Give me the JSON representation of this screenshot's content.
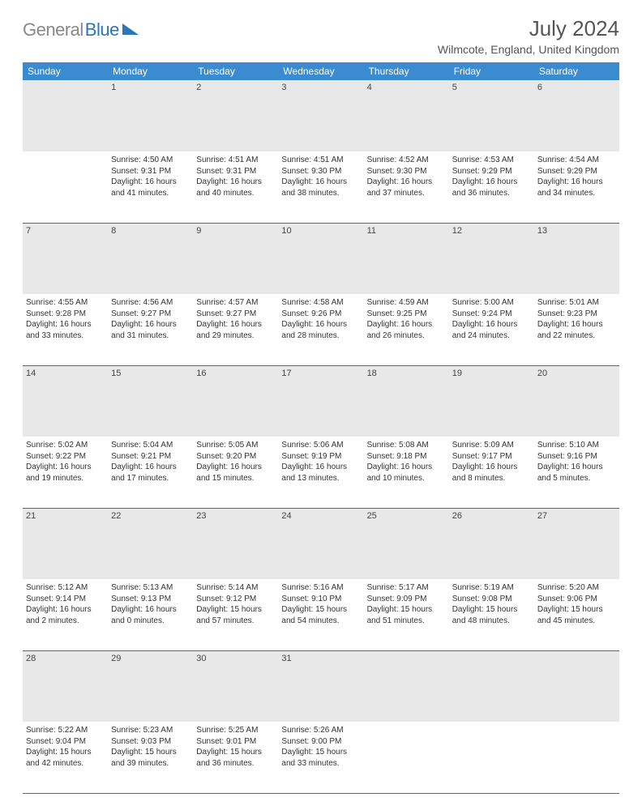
{
  "logo": {
    "gray": "General",
    "blue": "Blue"
  },
  "title": "July 2024",
  "location": "Wilmcote, England, United Kingdom",
  "colors": {
    "header_bg": "#3a8bd0",
    "rule": "#2e75b6",
    "daynum_bg": "#e8e8e8",
    "logo_gray": "#888888",
    "logo_blue": "#2e75b6"
  },
  "weekdays": [
    "Sunday",
    "Monday",
    "Tuesday",
    "Wednesday",
    "Thursday",
    "Friday",
    "Saturday"
  ],
  "weeks": [
    [
      {
        "num": "",
        "lines": []
      },
      {
        "num": "1",
        "lines": [
          "Sunrise: 4:50 AM",
          "Sunset: 9:31 PM",
          "Daylight: 16 hours",
          "and 41 minutes."
        ]
      },
      {
        "num": "2",
        "lines": [
          "Sunrise: 4:51 AM",
          "Sunset: 9:31 PM",
          "Daylight: 16 hours",
          "and 40 minutes."
        ]
      },
      {
        "num": "3",
        "lines": [
          "Sunrise: 4:51 AM",
          "Sunset: 9:30 PM",
          "Daylight: 16 hours",
          "and 38 minutes."
        ]
      },
      {
        "num": "4",
        "lines": [
          "Sunrise: 4:52 AM",
          "Sunset: 9:30 PM",
          "Daylight: 16 hours",
          "and 37 minutes."
        ]
      },
      {
        "num": "5",
        "lines": [
          "Sunrise: 4:53 AM",
          "Sunset: 9:29 PM",
          "Daylight: 16 hours",
          "and 36 minutes."
        ]
      },
      {
        "num": "6",
        "lines": [
          "Sunrise: 4:54 AM",
          "Sunset: 9:29 PM",
          "Daylight: 16 hours",
          "and 34 minutes."
        ]
      }
    ],
    [
      {
        "num": "7",
        "lines": [
          "Sunrise: 4:55 AM",
          "Sunset: 9:28 PM",
          "Daylight: 16 hours",
          "and 33 minutes."
        ]
      },
      {
        "num": "8",
        "lines": [
          "Sunrise: 4:56 AM",
          "Sunset: 9:27 PM",
          "Daylight: 16 hours",
          "and 31 minutes."
        ]
      },
      {
        "num": "9",
        "lines": [
          "Sunrise: 4:57 AM",
          "Sunset: 9:27 PM",
          "Daylight: 16 hours",
          "and 29 minutes."
        ]
      },
      {
        "num": "10",
        "lines": [
          "Sunrise: 4:58 AM",
          "Sunset: 9:26 PM",
          "Daylight: 16 hours",
          "and 28 minutes."
        ]
      },
      {
        "num": "11",
        "lines": [
          "Sunrise: 4:59 AM",
          "Sunset: 9:25 PM",
          "Daylight: 16 hours",
          "and 26 minutes."
        ]
      },
      {
        "num": "12",
        "lines": [
          "Sunrise: 5:00 AM",
          "Sunset: 9:24 PM",
          "Daylight: 16 hours",
          "and 24 minutes."
        ]
      },
      {
        "num": "13",
        "lines": [
          "Sunrise: 5:01 AM",
          "Sunset: 9:23 PM",
          "Daylight: 16 hours",
          "and 22 minutes."
        ]
      }
    ],
    [
      {
        "num": "14",
        "lines": [
          "Sunrise: 5:02 AM",
          "Sunset: 9:22 PM",
          "Daylight: 16 hours",
          "and 19 minutes."
        ]
      },
      {
        "num": "15",
        "lines": [
          "Sunrise: 5:04 AM",
          "Sunset: 9:21 PM",
          "Daylight: 16 hours",
          "and 17 minutes."
        ]
      },
      {
        "num": "16",
        "lines": [
          "Sunrise: 5:05 AM",
          "Sunset: 9:20 PM",
          "Daylight: 16 hours",
          "and 15 minutes."
        ]
      },
      {
        "num": "17",
        "lines": [
          "Sunrise: 5:06 AM",
          "Sunset: 9:19 PM",
          "Daylight: 16 hours",
          "and 13 minutes."
        ]
      },
      {
        "num": "18",
        "lines": [
          "Sunrise: 5:08 AM",
          "Sunset: 9:18 PM",
          "Daylight: 16 hours",
          "and 10 minutes."
        ]
      },
      {
        "num": "19",
        "lines": [
          "Sunrise: 5:09 AM",
          "Sunset: 9:17 PM",
          "Daylight: 16 hours",
          "and 8 minutes."
        ]
      },
      {
        "num": "20",
        "lines": [
          "Sunrise: 5:10 AM",
          "Sunset: 9:16 PM",
          "Daylight: 16 hours",
          "and 5 minutes."
        ]
      }
    ],
    [
      {
        "num": "21",
        "lines": [
          "Sunrise: 5:12 AM",
          "Sunset: 9:14 PM",
          "Daylight: 16 hours",
          "and 2 minutes."
        ]
      },
      {
        "num": "22",
        "lines": [
          "Sunrise: 5:13 AM",
          "Sunset: 9:13 PM",
          "Daylight: 16 hours",
          "and 0 minutes."
        ]
      },
      {
        "num": "23",
        "lines": [
          "Sunrise: 5:14 AM",
          "Sunset: 9:12 PM",
          "Daylight: 15 hours",
          "and 57 minutes."
        ]
      },
      {
        "num": "24",
        "lines": [
          "Sunrise: 5:16 AM",
          "Sunset: 9:10 PM",
          "Daylight: 15 hours",
          "and 54 minutes."
        ]
      },
      {
        "num": "25",
        "lines": [
          "Sunrise: 5:17 AM",
          "Sunset: 9:09 PM",
          "Daylight: 15 hours",
          "and 51 minutes."
        ]
      },
      {
        "num": "26",
        "lines": [
          "Sunrise: 5:19 AM",
          "Sunset: 9:08 PM",
          "Daylight: 15 hours",
          "and 48 minutes."
        ]
      },
      {
        "num": "27",
        "lines": [
          "Sunrise: 5:20 AM",
          "Sunset: 9:06 PM",
          "Daylight: 15 hours",
          "and 45 minutes."
        ]
      }
    ],
    [
      {
        "num": "28",
        "lines": [
          "Sunrise: 5:22 AM",
          "Sunset: 9:04 PM",
          "Daylight: 15 hours",
          "and 42 minutes."
        ]
      },
      {
        "num": "29",
        "lines": [
          "Sunrise: 5:23 AM",
          "Sunset: 9:03 PM",
          "Daylight: 15 hours",
          "and 39 minutes."
        ]
      },
      {
        "num": "30",
        "lines": [
          "Sunrise: 5:25 AM",
          "Sunset: 9:01 PM",
          "Daylight: 15 hours",
          "and 36 minutes."
        ]
      },
      {
        "num": "31",
        "lines": [
          "Sunrise: 5:26 AM",
          "Sunset: 9:00 PM",
          "Daylight: 15 hours",
          "and 33 minutes."
        ]
      },
      {
        "num": "",
        "lines": []
      },
      {
        "num": "",
        "lines": []
      },
      {
        "num": "",
        "lines": []
      }
    ]
  ]
}
